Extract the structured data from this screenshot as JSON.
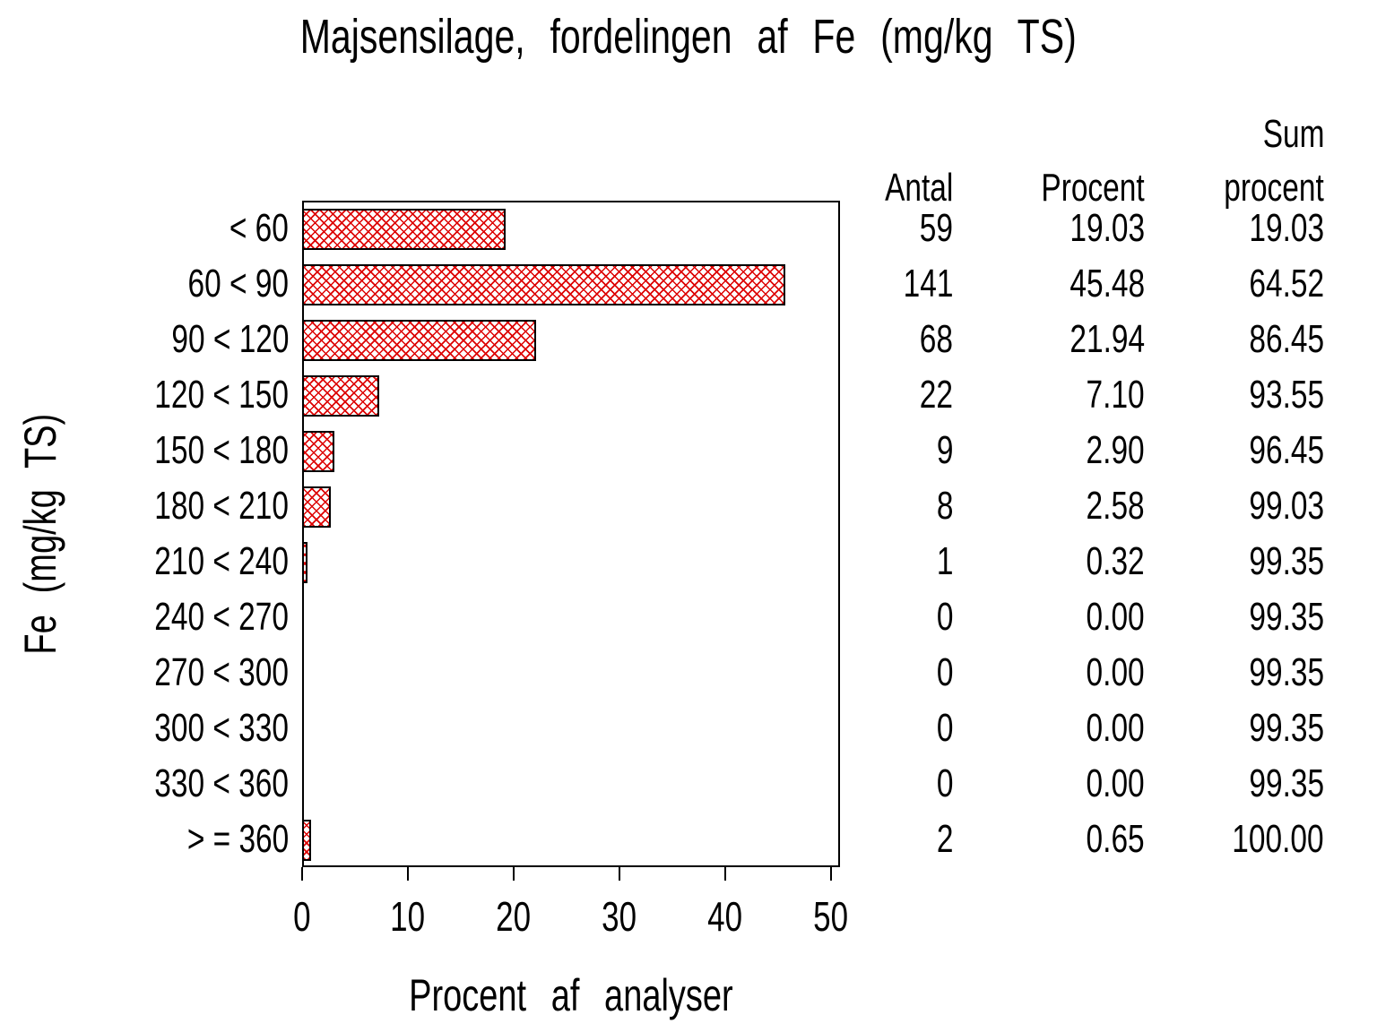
{
  "title": "Majsensilage, fordelingen af Fe (mg/kg TS)",
  "axes": {
    "x_label": "Procent af analyser",
    "y_label": "Fe (mg/kg TS)",
    "x_ticks": [
      "0",
      "10",
      "20",
      "30",
      "40",
      "50"
    ]
  },
  "table": {
    "header": {
      "antal": "Antal",
      "procent": "Procent",
      "sum_line1": "Sum",
      "sum_line2": "procent"
    }
  },
  "colors": {
    "hatch_red": "#dd0000",
    "axis_black": "#000000"
  },
  "chart_data": {
    "type": "bar",
    "orientation": "horizontal",
    "title": "Majsensilage, fordelingen af Fe (mg/kg TS)",
    "xlabel": "Procent af analyser",
    "ylabel": "Fe (mg/kg TS)",
    "xlim": [
      0,
      50
    ],
    "x_tick_step": 10,
    "grid": false,
    "legend": false,
    "categories": [
      "< 60",
      "60 < 90",
      "90 < 120",
      "120 < 150",
      "150 < 180",
      "180 < 210",
      "210 < 240",
      "240 < 270",
      "270 < 300",
      "300 < 330",
      "330 < 360",
      "> = 360"
    ],
    "bar_value_series": "Procent",
    "series": [
      {
        "name": "Antal",
        "values": [
          59,
          141,
          68,
          22,
          9,
          8,
          1,
          0,
          0,
          0,
          0,
          2
        ]
      },
      {
        "name": "Procent",
        "values": [
          19.03,
          45.48,
          21.94,
          7.1,
          2.9,
          2.58,
          0.32,
          0.0,
          0.0,
          0.0,
          0.0,
          0.65
        ]
      },
      {
        "name": "Sum procent",
        "values": [
          19.03,
          64.52,
          86.45,
          93.55,
          96.45,
          99.03,
          99.35,
          99.35,
          99.35,
          99.35,
          99.35,
          100.0
        ]
      }
    ]
  }
}
